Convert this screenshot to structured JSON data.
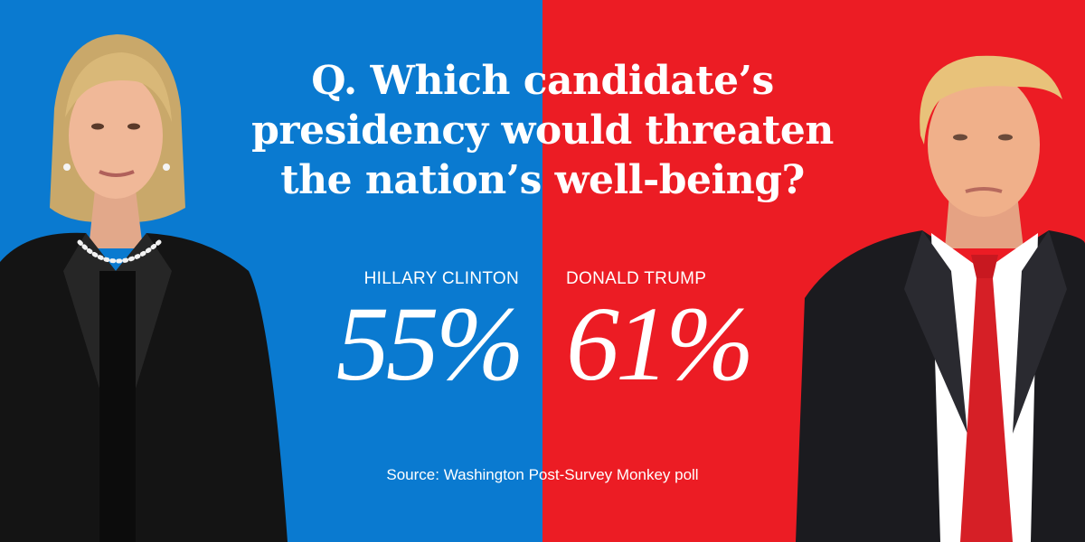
{
  "colors": {
    "clinton_panel": "#0a7ad0",
    "trump_panel": "#ec1c24",
    "text": "#ffffff"
  },
  "question_lines": [
    "Q. Which candidate’s",
    "presidency would threaten",
    "the nation’s well-being?"
  ],
  "candidates": [
    {
      "name": "HILLARY CLINTON",
      "percent_label": "55%"
    },
    {
      "name": "DONALD TRUMP",
      "percent_label": "61%"
    }
  ],
  "source": "Source: Washington Post-Survey Monkey poll",
  "chart_data": {
    "type": "bar",
    "categories": [
      "HILLARY CLINTON",
      "DONALD TRUMP"
    ],
    "values": [
      55,
      61
    ],
    "unit": "%",
    "title": "Q. Which candidate’s presidency would threaten the nation’s well-being?",
    "source": "Source: Washington Post-Survey Monkey poll"
  }
}
